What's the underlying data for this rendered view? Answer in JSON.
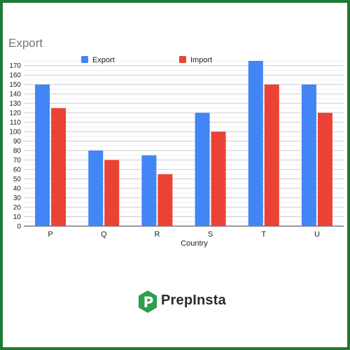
{
  "chart_data": {
    "type": "bar",
    "title": "Export",
    "xlabel": "Country",
    "ylabel": "",
    "categories": [
      "P",
      "Q",
      "R",
      "S",
      "T",
      "U"
    ],
    "series": [
      {
        "name": "Export",
        "color": "#4285f4",
        "values": [
          150,
          80,
          75,
          120,
          175,
          150
        ]
      },
      {
        "name": "Import",
        "color": "#ea4335",
        "values": [
          125,
          70,
          55,
          100,
          150,
          120
        ]
      }
    ],
    "ylim": [
      0,
      175
    ],
    "yticks": [
      "0",
      "10",
      "20",
      "30",
      "40",
      "50",
      "60",
      "70",
      "80",
      "90",
      "100",
      "110",
      "120",
      "130",
      "140",
      "150",
      "160",
      "170"
    ],
    "grid": true,
    "legend": "top"
  },
  "logo": {
    "text": "PrepInsta",
    "icon": "hexagon-p-logo-icon",
    "color": "#2e9e4f"
  }
}
